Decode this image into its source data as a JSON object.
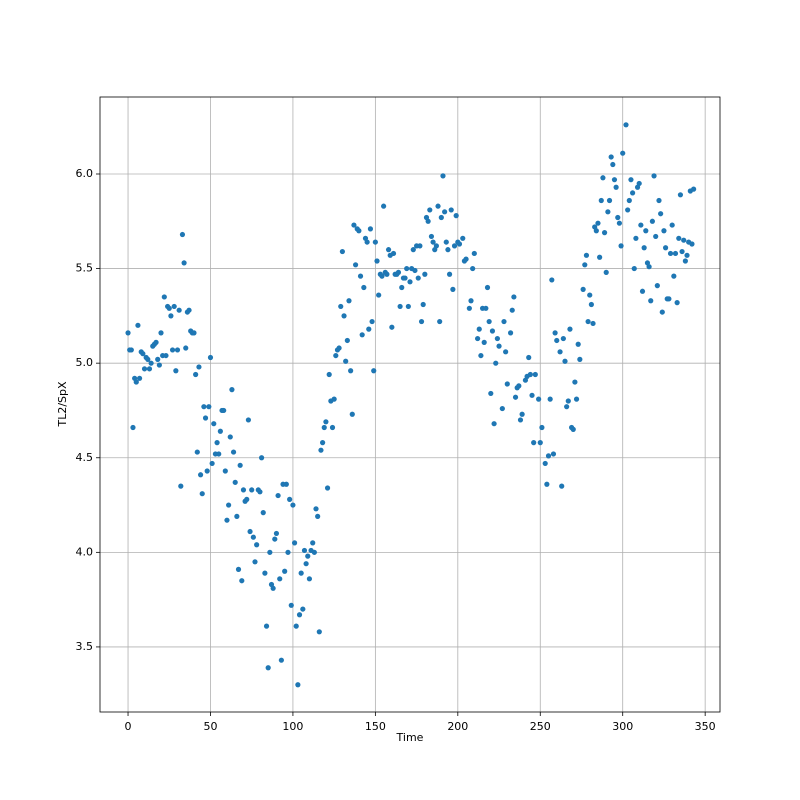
{
  "chart_data": {
    "type": "scatter",
    "xlabel": "Time",
    "ylabel": "TL2/SpX",
    "color": "#1f77b4",
    "grid": true,
    "xlim": [
      -17,
      359
    ],
    "ylim": [
      3.156,
      6.407
    ],
    "xticks": [
      0,
      50,
      100,
      150,
      200,
      250,
      300,
      350
    ],
    "yticks": [
      3.5,
      {
        "value": 4,
        "label": "4.0"
      },
      4.5,
      {
        "value": 5,
        "label": "5.0"
      },
      5.5,
      {
        "value": 6,
        "label": "6.0"
      }
    ],
    "x": [
      0,
      1,
      2,
      3,
      4,
      5,
      6,
      7,
      8,
      9,
      10,
      11,
      12,
      13,
      14,
      15,
      16,
      17,
      18,
      19,
      20,
      21,
      22,
      23,
      24,
      25,
      26,
      27,
      28,
      29,
      30,
      31,
      32,
      33,
      34,
      35,
      36,
      37,
      38,
      39,
      40,
      41,
      42,
      43,
      44,
      45,
      46,
      47,
      48,
      49,
      50,
      51,
      52,
      53,
      54,
      55,
      56,
      57,
      58,
      59,
      60,
      61,
      62,
      63,
      64,
      65,
      66,
      67,
      68,
      69,
      70,
      71,
      72,
      73,
      74,
      75,
      76,
      77,
      78,
      79,
      80,
      81,
      82,
      83,
      84,
      85,
      86,
      87,
      88,
      89,
      90,
      91,
      92,
      93,
      94,
      95,
      96,
      97,
      98,
      99,
      100,
      101,
      102,
      103,
      104,
      105,
      106,
      107,
      108,
      109,
      110,
      111,
      112,
      113,
      114,
      115,
      116,
      117,
      118,
      119,
      120,
      121,
      122,
      123,
      124,
      125,
      126,
      127,
      128,
      129,
      130,
      131,
      132,
      133,
      134,
      135,
      136,
      137,
      138,
      139,
      140,
      141,
      142,
      143,
      144,
      145,
      146,
      147,
      148,
      149,
      150,
      151,
      152,
      153,
      154,
      155,
      156,
      157,
      158,
      159,
      160,
      161,
      162,
      163,
      164,
      165,
      166,
      167,
      168,
      169,
      170,
      171,
      172,
      173,
      174,
      175,
      176,
      177,
      178,
      179,
      180,
      181,
      182,
      183,
      184,
      185,
      186,
      187,
      188,
      189,
      190,
      191,
      192,
      193,
      194,
      195,
      196,
      197,
      198,
      199,
      200,
      201,
      203,
      204,
      205,
      207,
      208,
      209,
      210,
      212,
      213,
      214,
      215,
      216,
      217,
      218,
      219,
      220,
      221,
      222,
      223,
      224,
      225,
      227,
      228,
      229,
      230,
      232,
      233,
      234,
      235,
      236,
      237,
      238,
      239,
      241,
      242,
      243,
      244,
      245,
      246,
      247,
      249,
      250,
      251,
      253,
      254,
      255,
      256,
      257,
      258,
      259,
      260,
      262,
      263,
      264,
      265,
      266,
      267,
      268,
      269,
      270,
      271,
      272,
      273,
      274,
      276,
      277,
      278,
      279,
      280,
      281,
      282,
      283,
      284,
      285,
      286,
      287,
      288,
      289,
      290,
      291,
      292,
      293,
      294,
      295,
      296,
      297,
      298,
      299,
      300,
      302,
      303,
      304,
      305,
      306,
      307,
      308,
      309,
      310,
      311,
      312,
      313,
      314,
      315,
      316,
      317,
      318,
      319,
      320,
      321,
      322,
      323,
      324,
      325,
      326,
      327,
      328,
      329,
      330,
      331,
      332,
      333,
      334,
      335,
      336,
      337,
      338,
      339,
      340,
      341,
      342,
      343
    ],
    "values": [
      5.16,
      5.07,
      5.07,
      4.66,
      4.92,
      4.9,
      5.2,
      4.92,
      5.06,
      5.05,
      4.97,
      5.03,
      5.02,
      4.97,
      5.0,
      5.09,
      5.1,
      5.11,
      5.02,
      4.99,
      5.16,
      5.04,
      5.35,
      5.04,
      5.3,
      5.29,
      5.25,
      5.07,
      5.3,
      4.96,
      5.07,
      5.28,
      4.35,
      5.68,
      5.53,
      5.08,
      5.27,
      5.28,
      5.17,
      5.16,
      5.16,
      4.94,
      4.53,
      4.98,
      4.41,
      4.31,
      4.77,
      4.71,
      4.43,
      4.77,
      5.03,
      4.47,
      4.68,
      4.52,
      4.58,
      4.52,
      4.64,
      4.75,
      4.75,
      4.43,
      4.17,
      4.25,
      4.61,
      4.86,
      4.53,
      4.37,
      4.19,
      3.91,
      4.46,
      3.85,
      4.33,
      4.27,
      4.28,
      4.7,
      4.11,
      4.33,
      4.08,
      3.95,
      4.04,
      4.33,
      4.32,
      4.5,
      4.21,
      3.89,
      3.61,
      3.39,
      4.0,
      3.83,
      3.81,
      4.07,
      4.1,
      4.3,
      3.86,
      3.43,
      4.36,
      3.9,
      4.36,
      4.0,
      4.28,
      3.72,
      4.25,
      4.05,
      3.61,
      3.3,
      3.67,
      3.89,
      3.7,
      4.01,
      3.94,
      3.98,
      3.86,
      4.01,
      4.05,
      4.0,
      4.23,
      4.19,
      3.58,
      4.54,
      4.58,
      4.66,
      4.69,
      4.34,
      4.94,
      4.8,
      4.66,
      4.81,
      5.04,
      5.07,
      5.08,
      5.3,
      5.59,
      5.25,
      5.01,
      5.12,
      5.33,
      4.96,
      4.73,
      5.73,
      5.52,
      5.71,
      5.7,
      5.46,
      5.15,
      5.4,
      5.66,
      5.64,
      5.18,
      5.71,
      5.22,
      4.96,
      5.64,
      5.54,
      5.36,
      5.47,
      5.46,
      5.83,
      5.48,
      5.47,
      5.6,
      5.57,
      5.19,
      5.58,
      5.47,
      5.47,
      5.48,
      5.3,
      5.4,
      5.45,
      5.45,
      5.5,
      5.3,
      5.43,
      5.5,
      5.6,
      5.49,
      5.62,
      5.45,
      5.62,
      5.22,
      5.31,
      5.47,
      5.77,
      5.75,
      5.81,
      5.67,
      5.64,
      5.6,
      5.62,
      5.83,
      5.22,
      5.77,
      5.99,
      5.8,
      5.64,
      5.6,
      5.47,
      5.81,
      5.39,
      5.62,
      5.78,
      5.64,
      5.63,
      5.66,
      5.54,
      5.55,
      5.29,
      5.33,
      5.5,
      5.58,
      5.13,
      5.18,
      5.04,
      5.29,
      5.11,
      5.29,
      5.4,
      5.22,
      4.84,
      5.17,
      4.68,
      5.0,
      5.13,
      5.09,
      4.76,
      5.22,
      5.06,
      4.89,
      5.16,
      5.28,
      5.35,
      4.82,
      4.87,
      4.88,
      4.7,
      4.73,
      4.91,
      4.93,
      5.03,
      4.94,
      4.83,
      4.58,
      4.94,
      4.81,
      4.58,
      4.66,
      4.47,
      4.36,
      4.51,
      4.81,
      5.44,
      4.52,
      5.16,
      5.12,
      5.06,
      4.35,
      5.13,
      5.01,
      4.77,
      4.8,
      5.18,
      4.66,
      4.65,
      4.9,
      4.81,
      5.1,
      5.02,
      5.39,
      5.52,
      5.57,
      5.22,
      5.36,
      5.31,
      5.21,
      5.72,
      5.7,
      5.74,
      5.56,
      5.86,
      5.98,
      5.69,
      5.48,
      5.8,
      5.86,
      6.09,
      6.05,
      5.97,
      5.93,
      5.77,
      5.74,
      5.62,
      6.11,
      6.26,
      5.81,
      5.86,
      5.97,
      5.9,
      5.5,
      5.66,
      5.93,
      5.95,
      5.73,
      5.38,
      5.61,
      5.7,
      5.53,
      5.51,
      5.33,
      5.75,
      5.99,
      5.67,
      5.41,
      5.86,
      5.79,
      5.27,
      5.7,
      5.61,
      5.34,
      5.34,
      5.58,
      5.73,
      5.46,
      5.58,
      5.32,
      5.66,
      5.89,
      5.59,
      5.65,
      5.54,
      5.57,
      5.64,
      5.91,
      5.63,
      5.92
    ]
  }
}
